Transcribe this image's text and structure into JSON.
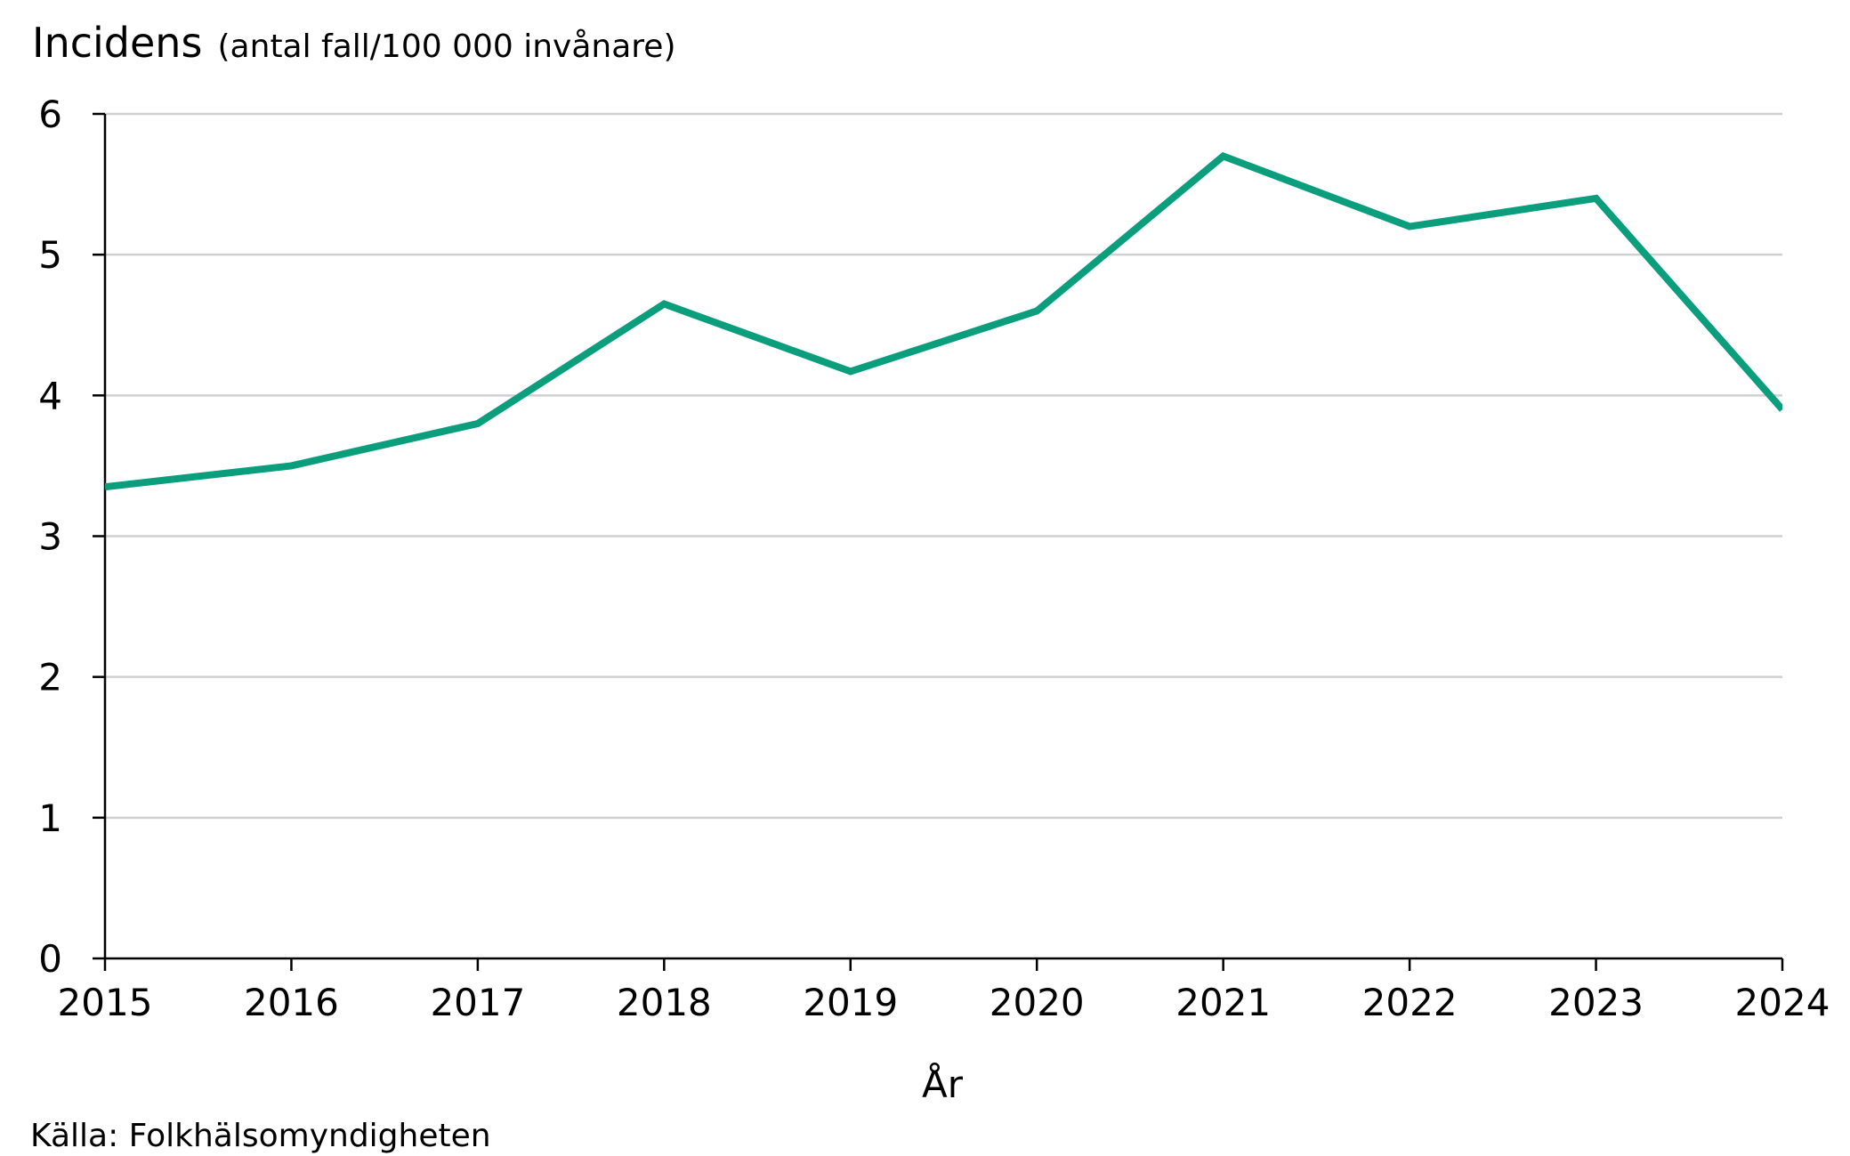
{
  "chart_data": {
    "type": "line",
    "title": "Incidens",
    "subtitle": "(antal fall/100 000 invånare)",
    "xlabel": "År",
    "ylabel": "Incidens (antal fall/100 000 invånare)",
    "x": [
      "2015",
      "2016",
      "2017",
      "2018",
      "2019",
      "2020",
      "2021",
      "2022",
      "2023",
      "2024"
    ],
    "series": [
      {
        "name": "Incidens",
        "color": "#0a9e7d",
        "values": [
          3.35,
          3.5,
          3.8,
          4.65,
          4.17,
          4.6,
          5.7,
          5.2,
          5.4,
          3.9
        ]
      }
    ],
    "ylim": [
      0,
      6
    ],
    "yticks": [
      "0",
      "1",
      "2",
      "3",
      "4",
      "5",
      "6"
    ],
    "grid": true,
    "source": "Källa: Folkhälsomyndigheten"
  },
  "colors": {
    "line": "#0a9e7d",
    "grid": "#d0d0d0",
    "axis": "#000000"
  }
}
